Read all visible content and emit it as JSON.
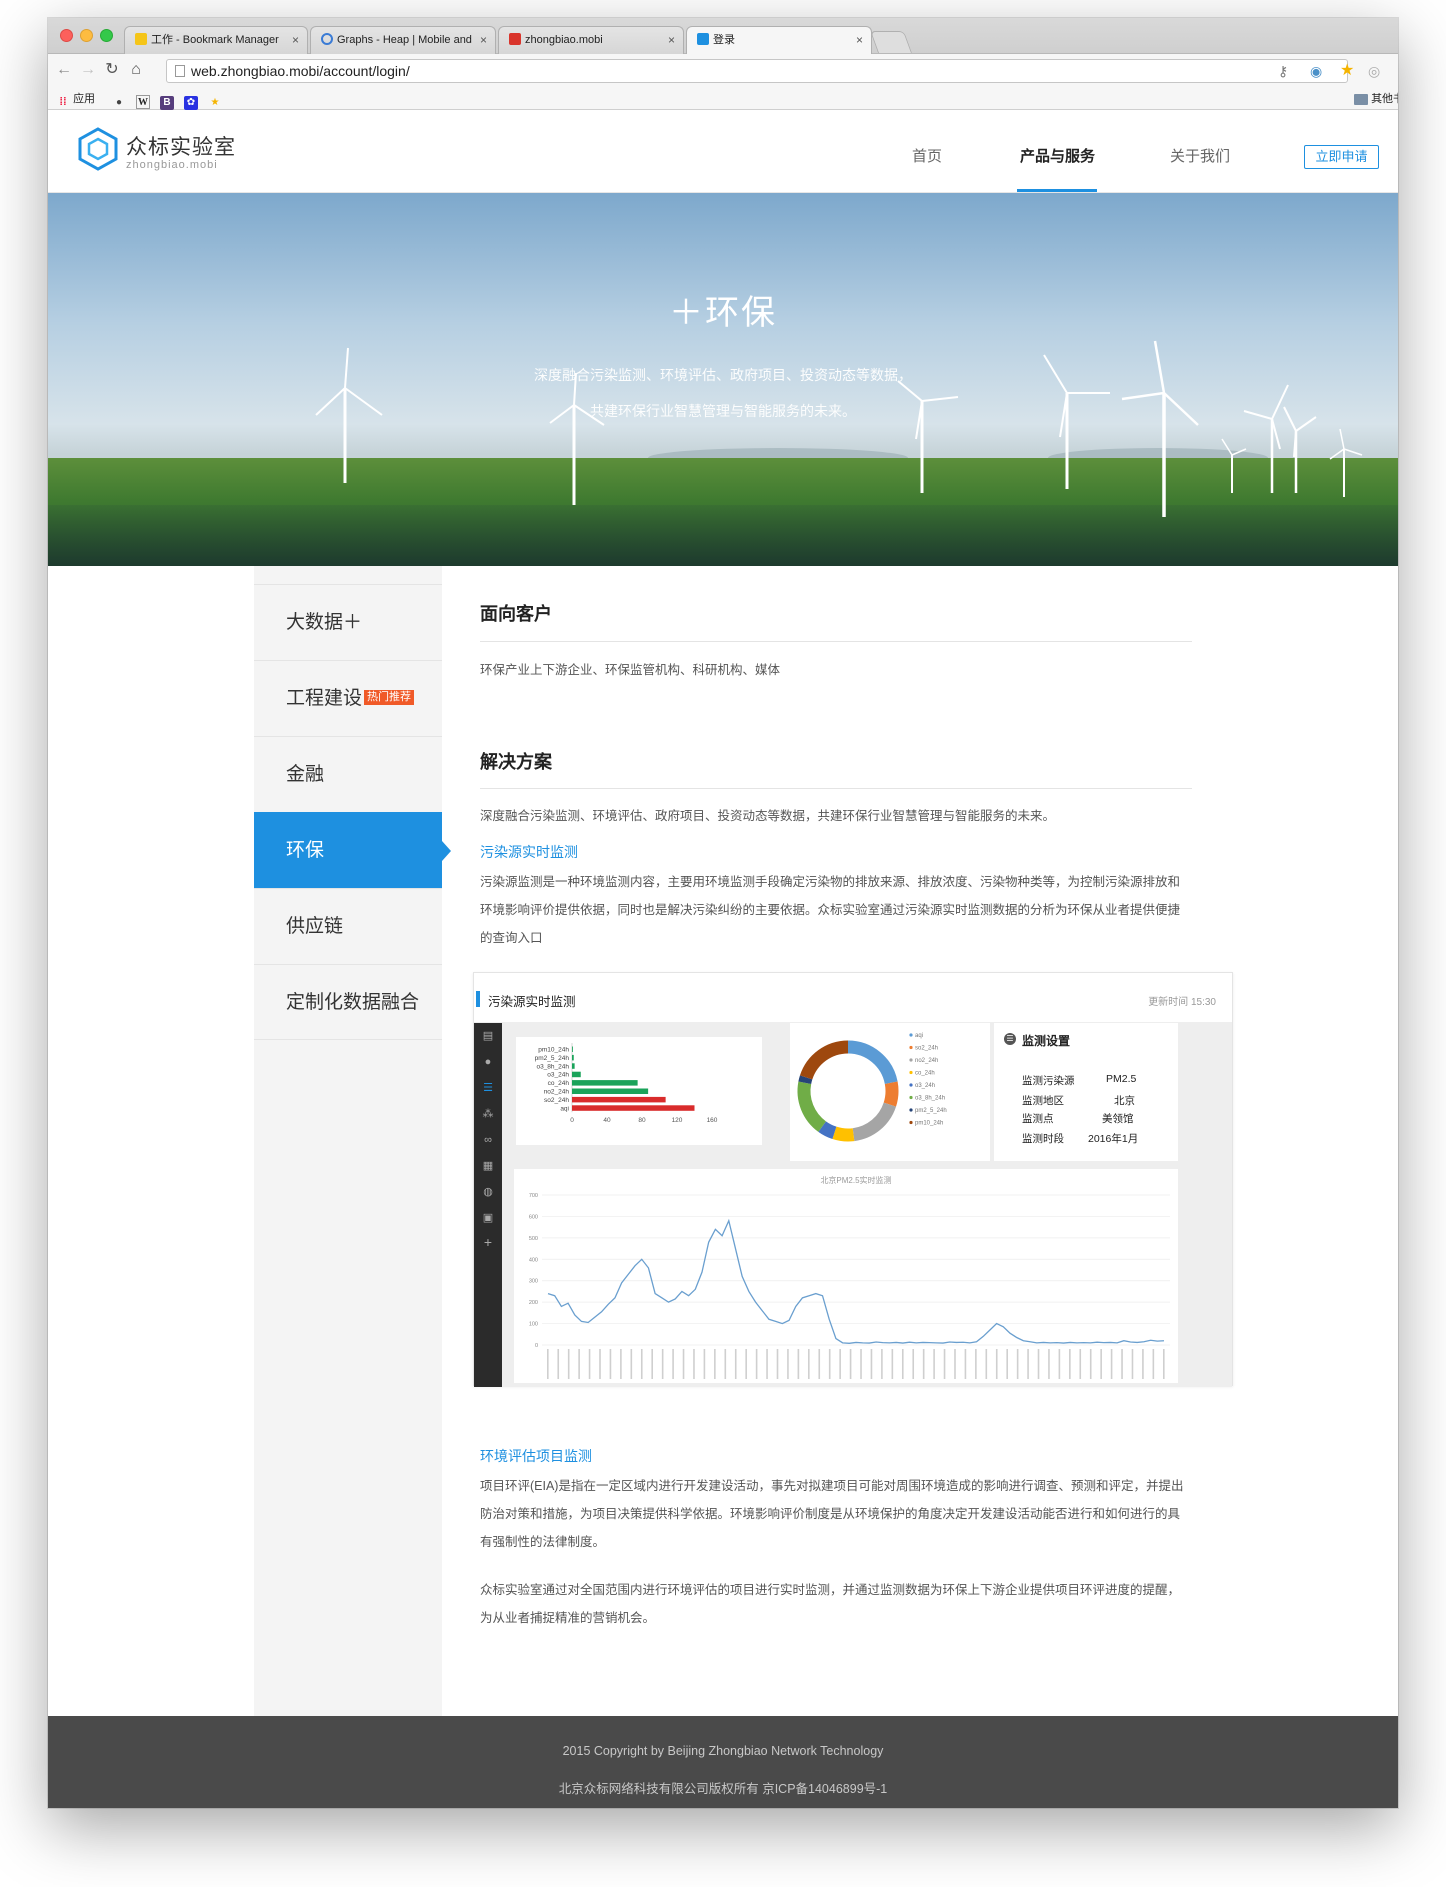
{
  "browser": {
    "tabs": [
      {
        "label": "工作 - Bookmark Manager"
      },
      {
        "label": "Graphs - Heap | Mobile and"
      },
      {
        "label": "zhongbiao.mobi"
      },
      {
        "label": "登录"
      }
    ],
    "address": "web.zhongbiao.mobi/account/login/",
    "bookmarks": {
      "apps_label": "应用",
      "other_label": "其他书"
    }
  },
  "site": {
    "logo_name": "众标实验室",
    "logo_sub": "zhongbiao.mobi",
    "nav": [
      {
        "label": "首页"
      },
      {
        "label": "产品与服务"
      },
      {
        "label": "关于我们"
      }
    ],
    "apply_label": "立即申请"
  },
  "hero": {
    "title": "＋环保",
    "line1": "深度融合污染监测、环境评估、政府项目、投资动态等数据，",
    "line2": "共建环保行业智慧管理与智能服务的未来。"
  },
  "sidebar": {
    "items": [
      {
        "label": "大数据＋"
      },
      {
        "label": "工程建设",
        "badge": "热门推荐"
      },
      {
        "label": "金融"
      },
      {
        "label": "环保"
      },
      {
        "label": "供应链"
      },
      {
        "label": "定制化数据融合"
      }
    ]
  },
  "content": {
    "customers_title": "面向客户",
    "customers_text": "环保产业上下游企业、环保监管机构、科研机构、媒体",
    "solution_title": "解决方案",
    "solution_intro": "深度融合污染监测、环境评估、政府项目、投资动态等数据，共建环保行业智慧管理与智能服务的未来。",
    "pollution_title": "污染源实时监测",
    "pollution_text": "污染源监测是一种环境监测内容，主要用环境监测手段确定污染物的排放来源、排放浓度、污染物种类等，为控制污染源排放和环境影响评价提供依据，同时也是解决污染纠纷的主要依据。众标实验室通过污染源实时监测数据的分析为环保从业者提供便捷的查询入口",
    "eia_title": "环境评估项目监测",
    "eia_text1": "项目环评(EIA)是指在一定区域内进行开发建设活动，事先对拟建项目可能对周围环境造成的影响进行调查、预测和评定，并提出防治对策和措施，为项目决策提供科学依据。环境影响评价制度是从环境保护的角度决定开发建设活动能否进行和如何进行的具有强制性的法律制度。",
    "eia_text2": "众标实验室通过对全国范围内进行环境评估的项目进行实时监测，并通过监测数据为环保上下游企业提供项目环评进度的提醒，为从业者捕捉精准的营销机会。"
  },
  "dashboard": {
    "title": "污染源实时监测",
    "updated": "更新时间 15:30",
    "settings": {
      "title": "监测设置",
      "rows": [
        {
          "key": "监测污染源",
          "value": "PM2.5"
        },
        {
          "key": "监测地区",
          "value": "北京"
        },
        {
          "key": "监测点",
          "value": "美领馆"
        },
        {
          "key": "监测时段",
          "value": "2016年1月"
        }
      ]
    }
  },
  "chart_data": [
    {
      "type": "bar",
      "orientation": "horizontal",
      "categories": [
        "pm10_24h",
        "pm2_5_24h",
        "o3_8h_24h",
        "o3_24h",
        "co_24h",
        "no2_24h",
        "so2_24h",
        "aqi"
      ],
      "values": [
        1,
        2,
        3,
        10,
        75,
        87,
        107,
        140
      ],
      "xticks": [
        0,
        40,
        80,
        120,
        160
      ],
      "xlim": [
        0,
        160
      ],
      "colors": [
        "#1aa35a",
        "#1aa35a",
        "#1aa35a",
        "#1aa35a",
        "#1aa35a",
        "#1aa35a",
        "#d92b2b",
        "#d92b2b"
      ]
    },
    {
      "type": "pie",
      "variant": "donut",
      "legend": [
        "aqi",
        "so2_24h",
        "no2_24h",
        "co_24h",
        "o3_24h",
        "o3_8h_24h",
        "pm2_5_24h",
        "pm10_24h"
      ],
      "values": [
        22,
        8,
        18,
        7,
        5,
        18,
        2,
        20
      ],
      "colors": [
        "#5b9bd5",
        "#ed7d31",
        "#a5a5a5",
        "#ffc000",
        "#4472c4",
        "#70ad47",
        "#264478",
        "#9e480e"
      ],
      "legend_position": "right"
    },
    {
      "type": "line",
      "title": "北京PM2.5实时监测",
      "yticks": [
        0,
        100,
        200,
        300,
        400,
        500,
        600,
        700
      ],
      "ylim": [
        0,
        700
      ],
      "values": [
        240,
        230,
        180,
        195,
        140,
        110,
        105,
        130,
        155,
        190,
        220,
        290,
        330,
        370,
        400,
        360,
        240,
        220,
        200,
        215,
        250,
        230,
        260,
        340,
        480,
        540,
        510,
        580,
        450,
        320,
        250,
        200,
        160,
        120,
        110,
        100,
        115,
        180,
        220,
        230,
        240,
        230,
        120,
        30,
        10,
        8,
        12,
        10,
        9,
        14,
        11,
        10,
        12,
        9,
        13,
        10,
        12,
        11,
        10,
        9,
        14,
        12,
        13,
        10,
        15,
        40,
        70,
        100,
        85,
        55,
        35,
        20,
        15,
        10,
        12,
        10,
        11,
        9,
        12,
        10,
        11,
        10,
        13,
        11,
        12,
        10,
        20,
        14,
        12,
        15,
        22,
        18,
        20
      ],
      "grid": true
    }
  ]
}
